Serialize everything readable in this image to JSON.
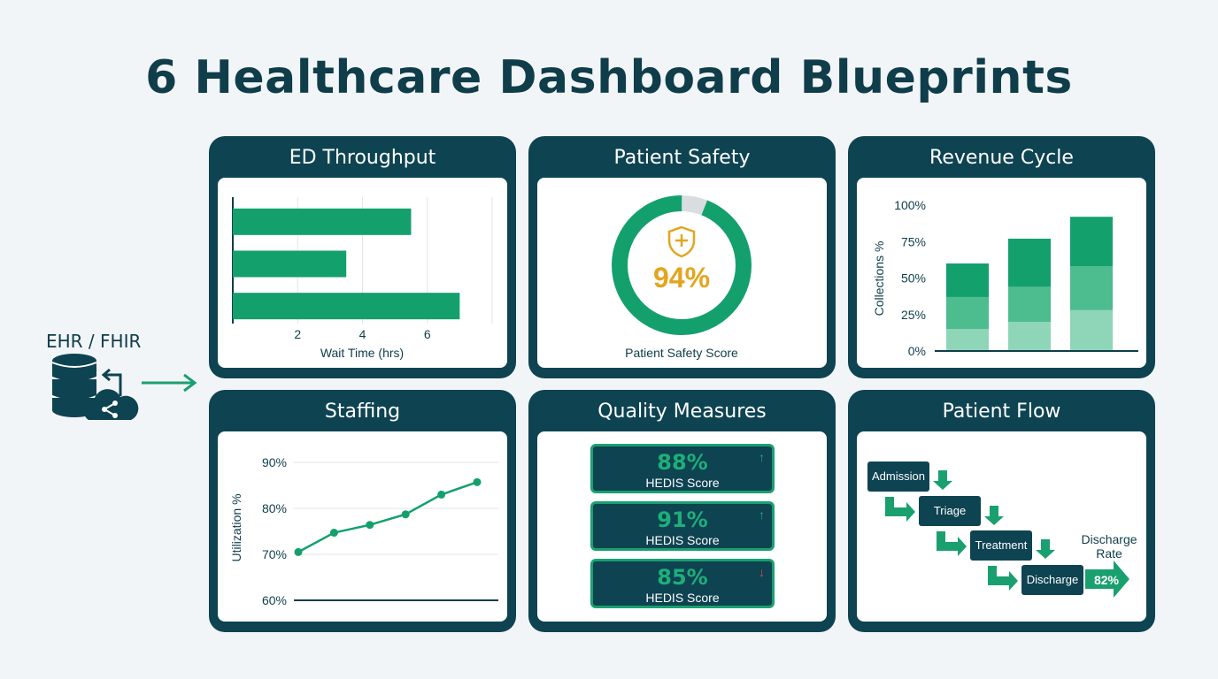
{
  "title": "6 Healthcare Dashboard Blueprints",
  "source": {
    "label": "EHR / FHIR",
    "icons": [
      "database-icon",
      "cloud-share-icon",
      "arrow-icon"
    ]
  },
  "colors": {
    "card": "#0e4352",
    "accent": "#1aa06f",
    "gold": "#e3a51e",
    "alert": "#e0473f"
  },
  "cards": {
    "ed_throughput": {
      "title": "ED Throughput",
      "chart_data": {
        "type": "bar",
        "orientation": "horizontal",
        "values": [
          5.5,
          3.5,
          7.0
        ],
        "xlabel": "Wait Time (hrs)",
        "xticks": [
          "2",
          "4",
          "6"
        ],
        "xlim": [
          0,
          8
        ],
        "grid": true
      }
    },
    "patient_safety": {
      "title": "Patient Safety",
      "value": "94%",
      "label": "Patient Safety Score",
      "chart_data": {
        "type": "pie",
        "values": [
          94,
          6
        ]
      },
      "icon": "shield-plus-icon"
    },
    "revenue_cycle": {
      "title": "Revenue Cycle",
      "chart_data": {
        "type": "bar",
        "stacked": true,
        "ylabel": "Collections %",
        "yticks": [
          "100%",
          "75%",
          "50%",
          "25%",
          "0%"
        ],
        "ylim": [
          0,
          100
        ],
        "series": [
          {
            "values": [
              15,
              20,
              28
            ]
          },
          {
            "values": [
              22,
              24,
              30
            ]
          },
          {
            "values": [
              23,
              33,
              34
            ]
          }
        ],
        "colors": [
          "#8fd6b9",
          "#4dbc8f",
          "#14a06d"
        ]
      }
    },
    "staffing": {
      "title": "Staffing",
      "chart_data": {
        "type": "line",
        "ylabel": "Utilization %",
        "yticks": [
          "90%",
          "80%",
          "70%",
          "60%"
        ],
        "ylim": [
          60,
          90
        ],
        "values": [
          70.5,
          74.7,
          76.4,
          78.7,
          83.0,
          85.7
        ],
        "grid": true
      }
    },
    "quality_measures": {
      "title": "Quality Measures",
      "tiles": [
        {
          "value": "88%",
          "label": "HEDIS Score",
          "trend": "↑",
          "trend_color": "#1fae78"
        },
        {
          "value": "91%",
          "label": "HEDIS Score",
          "trend": "↑",
          "trend_color": "#1fae78"
        },
        {
          "value": "85%",
          "label": "HEDIS Score",
          "trend": "↓",
          "trend_color": "#e0473f"
        }
      ]
    },
    "patient_flow": {
      "title": "Patient Flow",
      "steps": [
        "Admission",
        "Triage",
        "Treatment",
        "Discharge"
      ],
      "rate_label": "Discharge Rate",
      "rate_value": "82%"
    }
  }
}
